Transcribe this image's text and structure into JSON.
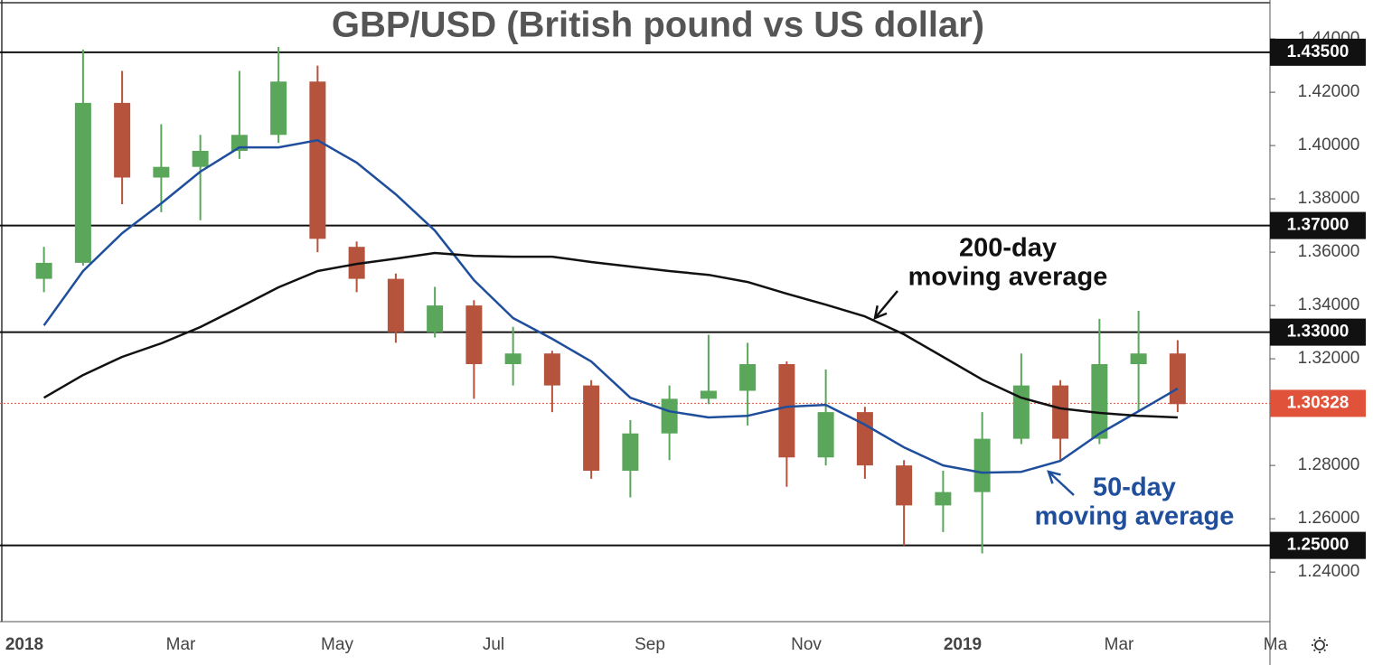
{
  "chart_data": {
    "type": "candlestick",
    "title": "GBP/USD (British pound vs US dollar)",
    "categories": [
      "2018",
      null,
      null,
      null,
      "Mar",
      null,
      null,
      null,
      "May",
      null,
      null,
      null,
      "Jul",
      null,
      null,
      null,
      "Sep",
      null,
      null,
      null,
      "Nov",
      null,
      null,
      null,
      "2019",
      null,
      null,
      null,
      "Mar",
      null,
      null,
      null,
      "Ma"
    ],
    "open": [
      1.35,
      1.356,
      1.416,
      1.388,
      1.392,
      1.398,
      1.404,
      1.424,
      1.362,
      1.35,
      1.33,
      1.34,
      1.318,
      1.322,
      1.31,
      1.278,
      1.292,
      1.305,
      1.308,
      1.318,
      1.283,
      1.3,
      1.28,
      1.265,
      1.27,
      1.29,
      1.31,
      1.29,
      1.318,
      1.322,
      null,
      null,
      null
    ],
    "high": [
      1.362,
      1.436,
      1.428,
      1.408,
      1.404,
      1.428,
      1.437,
      1.43,
      1.364,
      1.352,
      1.347,
      1.342,
      1.332,
      1.323,
      1.312,
      1.297,
      1.31,
      1.329,
      1.326,
      1.319,
      1.316,
      1.302,
      1.282,
      1.278,
      1.3,
      1.322,
      1.312,
      1.335,
      1.338,
      1.327,
      null,
      null,
      null
    ],
    "low": [
      1.345,
      1.355,
      1.378,
      1.375,
      1.372,
      1.395,
      1.401,
      1.36,
      1.345,
      1.326,
      1.328,
      1.305,
      1.31,
      1.3,
      1.275,
      1.268,
      1.282,
      1.303,
      1.295,
      1.272,
      1.28,
      1.275,
      1.25,
      1.255,
      1.247,
      1.288,
      1.282,
      1.288,
      1.3,
      1.3,
      null,
      null,
      null
    ],
    "close": [
      1.356,
      1.416,
      1.388,
      1.392,
      1.398,
      1.404,
      1.424,
      1.365,
      1.35,
      1.33,
      1.34,
      1.318,
      1.322,
      1.31,
      1.278,
      1.292,
      1.305,
      1.308,
      1.318,
      1.283,
      1.3,
      1.28,
      1.265,
      1.27,
      1.29,
      1.31,
      1.29,
      1.318,
      1.322,
      1.303,
      null,
      null,
      null
    ],
    "up_color": "#5aa65a",
    "down_color": "#b5533c",
    "series": [
      {
        "color": "#1f4e9c",
        "values": [
          1.3325,
          1.3529,
          1.3671,
          1.3783,
          1.3902,
          1.3993,
          1.3993,
          1.402,
          1.3936,
          1.3817,
          1.3681,
          1.3495,
          1.3353,
          1.3275,
          1.319,
          1.3054,
          1.3003,
          1.298,
          1.2986,
          1.302,
          1.3027,
          1.2953,
          1.2868,
          1.28,
          1.2773,
          1.2776,
          1.2817,
          1.2919,
          1.3003,
          1.3088,
          null,
          null,
          null
        ]
      },
      {
        "color": "#111111",
        "values": [
          1.3054,
          1.3139,
          1.3207,
          1.3258,
          1.3319,
          1.3393,
          1.3468,
          1.3529,
          1.3556,
          1.3576,
          1.3597,
          1.3586,
          1.3583,
          1.3583,
          1.3563,
          1.3546,
          1.3529,
          1.3515,
          1.3488,
          1.3444,
          1.3403,
          1.3359,
          1.3292,
          1.3207,
          1.3122,
          1.3054,
          1.3014,
          1.2997,
          1.2986,
          1.298,
          null,
          null,
          null
        ]
      }
    ],
    "ylim": [
      1.2214,
      1.4546
    ],
    "yticks": [
      {
        "value": 1.24,
        "label": "1.24000"
      },
      {
        "value": 1.26,
        "label": "1.26000"
      },
      {
        "value": 1.28,
        "label": "1.28000"
      },
      {
        "value": 1.3,
        "label": "1.30000"
      },
      {
        "value": 1.32,
        "label": "1.32000"
      },
      {
        "value": 1.34,
        "label": "1.34000"
      },
      {
        "value": 1.36,
        "label": "1.36000"
      },
      {
        "value": 1.38,
        "label": "1.38000"
      },
      {
        "value": 1.4,
        "label": "1.40000"
      },
      {
        "value": 1.42,
        "label": "1.42000"
      },
      {
        "value": 1.44,
        "label": "1.44000"
      }
    ],
    "levels": [
      {
        "value": 1.435,
        "label": "1.43500"
      },
      {
        "value": 1.37,
        "label": "1.37000"
      },
      {
        "value": 1.33,
        "label": "1.33000"
      },
      {
        "value": 1.25,
        "label": "1.25000"
      }
    ],
    "last_price": {
      "value": 1.30328,
      "label": "1.30328",
      "color": "#e0533a"
    },
    "annotations": [
      {
        "lines": [
          "200-day",
          "moving average"
        ],
        "color": "#111111"
      },
      {
        "lines": [
          "50-day",
          "moving average"
        ],
        "color": "#1f4e9c"
      }
    ]
  }
}
